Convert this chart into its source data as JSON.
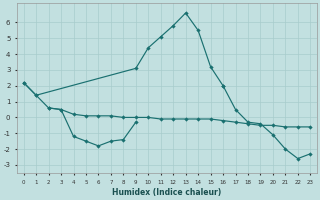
{
  "xlabel": "Humidex (Indice chaleur)",
  "bg_color": "#c2e0e0",
  "line_color": "#1a7070",
  "grid_color": "#a8cccc",
  "series": [
    {
      "x": [
        0,
        1,
        9,
        10,
        11,
        12,
        13,
        14,
        15,
        16
      ],
      "y": [
        2.2,
        1.4,
        3.1,
        4.4,
        5.1,
        5.8,
        6.6,
        5.5,
        3.2,
        2.0
      ]
    },
    {
      "x": [
        2,
        3,
        4,
        5,
        6,
        7,
        8,
        9
      ],
      "y": [
        0.6,
        0.5,
        -1.2,
        -1.5,
        -1.8,
        -1.5,
        -1.4,
        -0.3
      ]
    },
    {
      "x": [
        0,
        1,
        2,
        3,
        4,
        5,
        6,
        7,
        8,
        9,
        10,
        11,
        12,
        13,
        14,
        15,
        16,
        17,
        18,
        19,
        20,
        21,
        22,
        23
      ],
      "y": [
        2.2,
        1.4,
        0.6,
        0.5,
        0.2,
        0.1,
        0.1,
        0.1,
        0.0,
        0.0,
        0.0,
        -0.1,
        -0.1,
        -0.1,
        -0.1,
        -0.1,
        -0.2,
        -0.3,
        -0.4,
        -0.5,
        -0.5,
        -0.6,
        -0.6,
        -0.6
      ]
    },
    {
      "x": [
        16,
        17,
        18,
        19,
        20,
        21,
        22,
        23
      ],
      "y": [
        2.0,
        0.5,
        -0.3,
        -0.4,
        -1.1,
        -2.0,
        -2.6,
        -2.3
      ]
    }
  ],
  "ylim": [
    -3.5,
    7.2
  ],
  "yticks": [
    -3,
    -2,
    -1,
    0,
    1,
    2,
    3,
    4,
    5,
    6
  ],
  "xlim": [
    -0.5,
    23.5
  ],
  "xticks": [
    0,
    1,
    2,
    3,
    4,
    5,
    6,
    7,
    8,
    9,
    10,
    11,
    12,
    13,
    14,
    15,
    16,
    17,
    18,
    19,
    20,
    21,
    22,
    23
  ]
}
